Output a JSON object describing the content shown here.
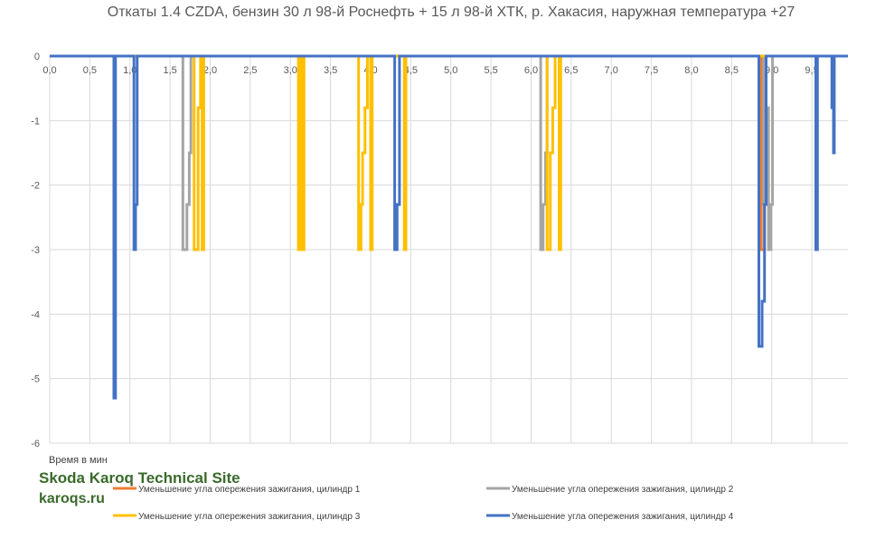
{
  "chart_data": {
    "type": "line",
    "title": "Откаты 1.4 CZDA, бензин 30 л 98-й Роснефть + 15 л 98-й ХТК, р. Хакасия, наружная температура +27",
    "xlabel": "Время в мин",
    "ylabel": "",
    "xlim": [
      0,
      9.95
    ],
    "ylim": [
      -6,
      0
    ],
    "x_ticks": [
      "0,0",
      "0,5",
      "1,0",
      "1,5",
      "2,0",
      "2,5",
      "3,0",
      "3,5",
      "4,0",
      "4,5",
      "5,0",
      "5,5",
      "6,0",
      "6,5",
      "7,0",
      "7,5",
      "8,0",
      "8,5",
      "9,0",
      "9,5"
    ],
    "y_ticks": [
      "0",
      "-1",
      "-2",
      "-3",
      "-4",
      "-5",
      "-6"
    ],
    "grid": true,
    "legend_position": "bottom",
    "series": [
      {
        "name": "Уменьшение угла опережения зажигания, цилиндр 1",
        "color": "#ED7D31",
        "points": [
          [
            0,
            0
          ],
          [
            8.87,
            0
          ],
          [
            8.87,
            -3
          ],
          [
            8.91,
            -3
          ],
          [
            8.91,
            0
          ],
          [
            9.95,
            0
          ]
        ]
      },
      {
        "name": "Уменьшение угла опережения зажигания, цилиндр 2",
        "color": "#A5A5A5",
        "points": [
          [
            0,
            0
          ],
          [
            1.66,
            0
          ],
          [
            1.66,
            -3
          ],
          [
            1.71,
            -3
          ],
          [
            1.71,
            -2.3
          ],
          [
            1.74,
            -2.3
          ],
          [
            1.74,
            -1.5
          ],
          [
            1.76,
            -1.5
          ],
          [
            1.76,
            0
          ],
          [
            6.12,
            0
          ],
          [
            6.12,
            -3
          ],
          [
            6.15,
            -3
          ],
          [
            6.15,
            -2.3
          ],
          [
            6.18,
            -2.3
          ],
          [
            6.18,
            -1.5
          ],
          [
            6.2,
            -1.5
          ],
          [
            6.2,
            0
          ],
          [
            8.9,
            0
          ],
          [
            8.9,
            -2.3
          ],
          [
            8.93,
            -2.3
          ],
          [
            8.93,
            -1.5
          ],
          [
            8.95,
            -1.5
          ],
          [
            8.95,
            -0.8
          ],
          [
            8.96,
            -0.8
          ],
          [
            8.96,
            -3
          ],
          [
            8.99,
            -3
          ],
          [
            8.99,
            -2.3
          ],
          [
            9.01,
            -2.3
          ],
          [
            9.01,
            0
          ],
          [
            9.95,
            0
          ]
        ]
      },
      {
        "name": "Уменьшение угла опережения зажигания, цилиндр 3",
        "color": "#FFC000",
        "points": [
          [
            0,
            0
          ],
          [
            1.8,
            0
          ],
          [
            1.8,
            -3
          ],
          [
            1.85,
            -3
          ],
          [
            1.85,
            -0.8
          ],
          [
            1.88,
            -0.8
          ],
          [
            1.88,
            0
          ],
          [
            1.9,
            0
          ],
          [
            1.9,
            -3
          ],
          [
            1.92,
            -3
          ],
          [
            1.92,
            0
          ],
          [
            3.1,
            0
          ],
          [
            3.1,
            -3
          ],
          [
            3.12,
            -3
          ],
          [
            3.12,
            0
          ],
          [
            3.15,
            0
          ],
          [
            3.15,
            -3
          ],
          [
            3.17,
            -3
          ],
          [
            3.17,
            0
          ],
          [
            3.85,
            0
          ],
          [
            3.85,
            -3
          ],
          [
            3.88,
            -3
          ],
          [
            3.88,
            -2.3
          ],
          [
            3.9,
            -2.3
          ],
          [
            3.9,
            -1.5
          ],
          [
            3.93,
            -1.5
          ],
          [
            3.93,
            -0.8
          ],
          [
            3.96,
            -0.8
          ],
          [
            3.96,
            0
          ],
          [
            4.0,
            0
          ],
          [
            4.0,
            -3
          ],
          [
            4.02,
            -3
          ],
          [
            4.02,
            0
          ],
          [
            4.42,
            0
          ],
          [
            4.42,
            -3
          ],
          [
            4.44,
            -3
          ],
          [
            4.44,
            0
          ],
          [
            6.2,
            0
          ],
          [
            6.2,
            -3
          ],
          [
            6.24,
            -3
          ],
          [
            6.24,
            -1.5
          ],
          [
            6.27,
            -1.5
          ],
          [
            6.27,
            -0.8
          ],
          [
            6.3,
            -0.8
          ],
          [
            6.3,
            0
          ],
          [
            6.35,
            0
          ],
          [
            6.35,
            -3
          ],
          [
            6.37,
            -3
          ],
          [
            6.37,
            0
          ],
          [
            9.95,
            0
          ]
        ]
      },
      {
        "name": "Уменьшение угла опережения зажигания, цилиндр 4",
        "color": "#4472C4",
        "points": [
          [
            0,
            0
          ],
          [
            0.8,
            0
          ],
          [
            0.8,
            -5.3
          ],
          [
            0.82,
            -5.3
          ],
          [
            0.82,
            0
          ],
          [
            1.05,
            0
          ],
          [
            1.05,
            -3
          ],
          [
            1.07,
            -3
          ],
          [
            1.07,
            -2.3
          ],
          [
            1.09,
            -2.3
          ],
          [
            1.09,
            0
          ],
          [
            4.3,
            0
          ],
          [
            4.3,
            -3
          ],
          [
            4.33,
            -3
          ],
          [
            4.33,
            -2.3
          ],
          [
            4.36,
            -2.3
          ],
          [
            4.36,
            0
          ],
          [
            8.84,
            0
          ],
          [
            8.84,
            -4.5
          ],
          [
            8.88,
            -4.5
          ],
          [
            8.88,
            -3.8
          ],
          [
            8.91,
            -3.8
          ],
          [
            8.91,
            -2.3
          ],
          [
            8.93,
            -2.3
          ],
          [
            8.93,
            0
          ],
          [
            9.55,
            0
          ],
          [
            9.55,
            -3
          ],
          [
            9.57,
            -3
          ],
          [
            9.57,
            0
          ],
          [
            9.75,
            0
          ],
          [
            9.75,
            -0.8
          ],
          [
            9.77,
            -0.8
          ],
          [
            9.77,
            -1.5
          ],
          [
            9.78,
            -1.5
          ],
          [
            9.78,
            0
          ],
          [
            9.95,
            0
          ]
        ]
      }
    ]
  },
  "watermark": {
    "line1": "Skoda Karoq Technical Site",
    "line2": "karoqs.ru"
  }
}
